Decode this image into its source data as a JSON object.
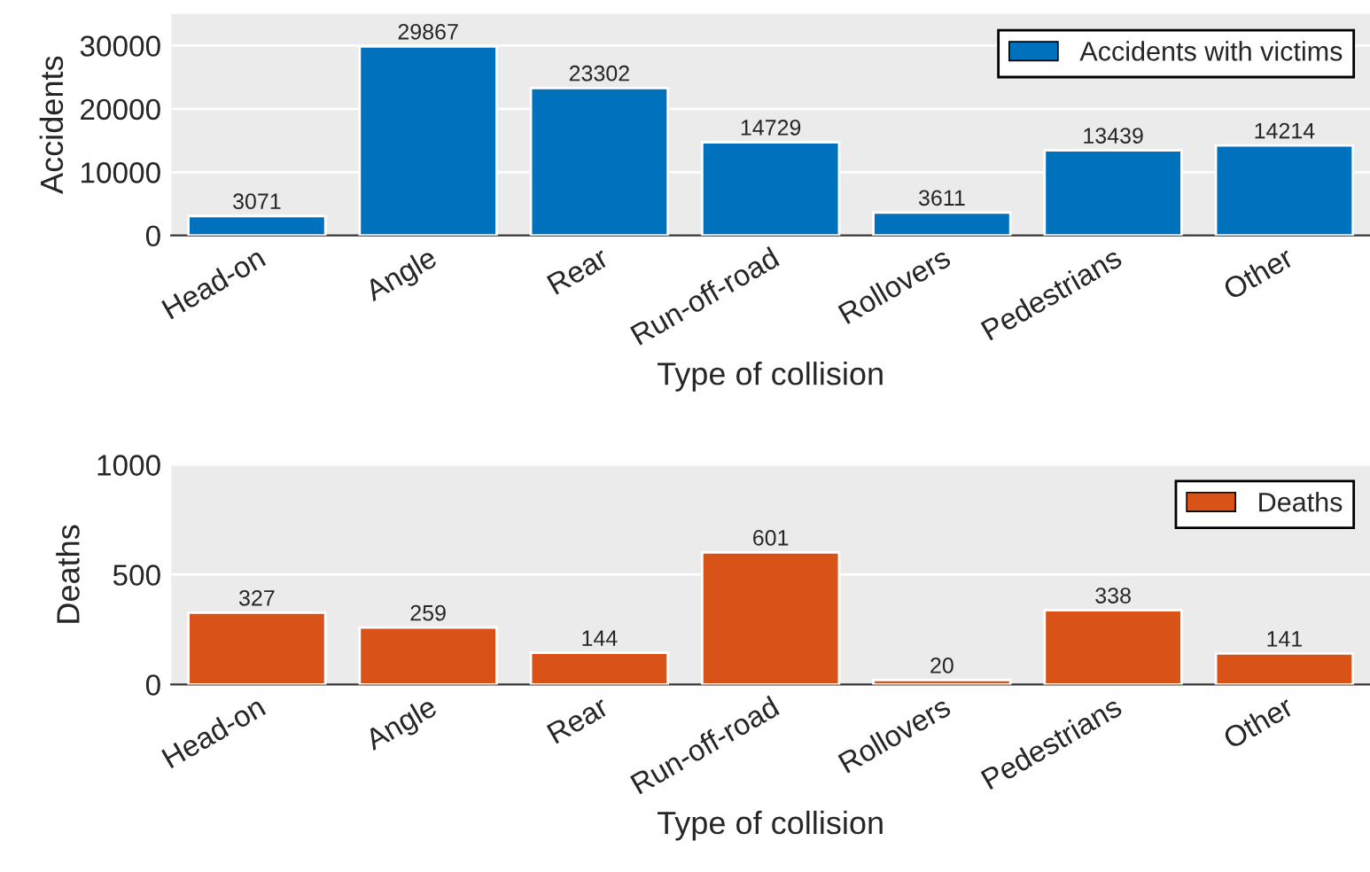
{
  "chart_data": [
    {
      "type": "bar",
      "categories": [
        "Head-on",
        "Angle",
        "Rear",
        "Run-off-road",
        "Rollovers",
        "Pedestrians",
        "Other"
      ],
      "xlabel": "Type of collision",
      "ylabel": "Accidents",
      "ylim": [
        0,
        35000
      ],
      "yticks": [
        0,
        10000,
        20000,
        30000
      ],
      "grid": "y",
      "legend": "top right",
      "data_labels": true,
      "series": [
        {
          "name": "Accidents with victims",
          "color": "#0072bd",
          "values": [
            3071,
            29867,
            23302,
            14729,
            3611,
            13439,
            14214
          ]
        }
      ]
    },
    {
      "type": "bar",
      "categories": [
        "Head-on",
        "Angle",
        "Rear",
        "Run-off-road",
        "Rollovers",
        "Pedestrians",
        "Other"
      ],
      "xlabel": "Type of collision",
      "ylabel": "Deaths",
      "ylim": [
        0,
        1000
      ],
      "yticks": [
        0,
        500,
        1000
      ],
      "grid": "y",
      "legend": "top right",
      "data_labels": true,
      "series": [
        {
          "name": "Deaths",
          "color": "#d95319",
          "values": [
            327,
            259,
            144,
            601,
            20,
            338,
            141
          ]
        }
      ]
    }
  ]
}
